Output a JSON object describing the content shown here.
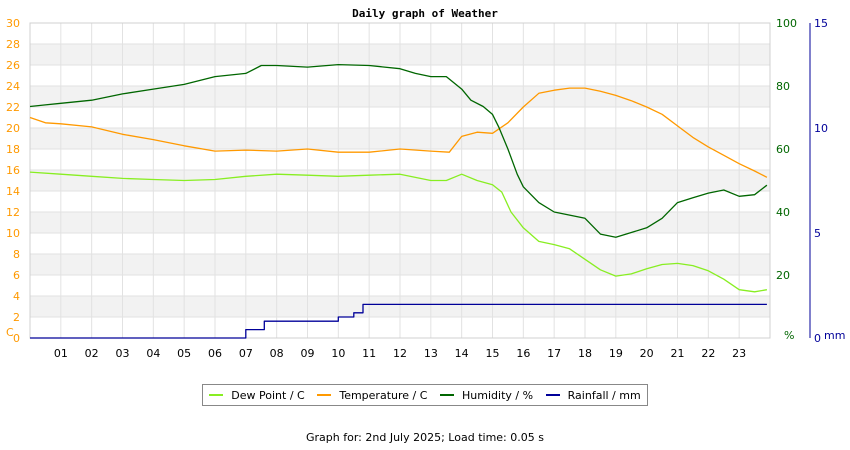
{
  "chart_data": {
    "type": "line",
    "title": "Daily graph of Weather",
    "x_ticks": [
      "01",
      "02",
      "03",
      "04",
      "05",
      "06",
      "07",
      "08",
      "09",
      "10",
      "11",
      "12",
      "13",
      "14",
      "15",
      "16",
      "17",
      "18",
      "19",
      "20",
      "21",
      "22",
      "23"
    ],
    "xlim": [
      0,
      24
    ],
    "axes": {
      "left": {
        "label": "C",
        "lim": [
          0,
          30
        ],
        "ticks": [
          0,
          2,
          4,
          6,
          8,
          10,
          12,
          14,
          16,
          18,
          20,
          22,
          24,
          26,
          28,
          30
        ],
        "color": "#ff9900"
      },
      "right1": {
        "label": "%",
        "lim": [
          0,
          100
        ],
        "ticks": [
          20,
          40,
          60,
          80,
          100
        ],
        "color": "#006600"
      },
      "right2": {
        "label": "mm",
        "lim": [
          0,
          15
        ],
        "ticks": [
          0,
          5,
          10,
          15
        ],
        "color": "#000099"
      }
    },
    "series": [
      {
        "name": "Dew Point / C",
        "axis": "left",
        "color": "#88ee22",
        "x": [
          0,
          1,
          2,
          3,
          4,
          5,
          6,
          7,
          8,
          9,
          10,
          11,
          12,
          13,
          13.5,
          14,
          14.5,
          15,
          15.3,
          15.6,
          16,
          16.5,
          17,
          17.5,
          18,
          18.5,
          19,
          19.5,
          20,
          20.5,
          21,
          21.5,
          22,
          22.5,
          23,
          23.5,
          23.9
        ],
        "values": [
          15.8,
          15.6,
          15.4,
          15.2,
          15.1,
          15.0,
          15.1,
          15.4,
          15.6,
          15.5,
          15.4,
          15.5,
          15.6,
          15.0,
          15.0,
          15.6,
          15.0,
          14.6,
          13.9,
          12.0,
          10.5,
          9.2,
          8.9,
          8.5,
          7.5,
          6.5,
          5.9,
          6.1,
          6.6,
          7.0,
          7.1,
          6.9,
          6.4,
          5.6,
          4.6,
          4.4,
          4.6
        ]
      },
      {
        "name": "Temperature / C",
        "axis": "left",
        "color": "#ff9900",
        "x": [
          0,
          0.5,
          1,
          2,
          3,
          4,
          5,
          6,
          7,
          8,
          9,
          10,
          11,
          12,
          13,
          13.6,
          14,
          14.5,
          15,
          15.5,
          16,
          16.5,
          17,
          17.5,
          18,
          18.5,
          19,
          19.5,
          20,
          20.5,
          21,
          21.5,
          22,
          22.5,
          23,
          23.5,
          23.9
        ],
        "values": [
          21.0,
          20.5,
          20.4,
          20.1,
          19.4,
          18.9,
          18.3,
          17.8,
          17.9,
          17.8,
          18.0,
          17.7,
          17.7,
          18.0,
          17.8,
          17.7,
          19.2,
          19.6,
          19.5,
          20.5,
          22.0,
          23.3,
          23.6,
          23.8,
          23.8,
          23.5,
          23.1,
          22.6,
          22.0,
          21.3,
          20.2,
          19.1,
          18.2,
          17.4,
          16.6,
          15.9,
          15.3
        ]
      },
      {
        "name": "Humidity / %",
        "axis": "right1",
        "color": "#006600",
        "x": [
          0,
          0.5,
          1,
          2,
          3,
          4,
          5,
          6,
          7,
          7.5,
          8,
          9,
          10,
          11,
          12,
          12.5,
          13,
          13.5,
          14,
          14.3,
          14.7,
          15,
          15.2,
          15.5,
          15.8,
          16,
          16.5,
          17,
          17.5,
          18,
          18.5,
          19,
          19.5,
          20,
          20.5,
          21,
          21.5,
          22,
          22.5,
          23,
          23.5,
          23.9
        ],
        "values": [
          73.5,
          74.0,
          74.5,
          75.5,
          77.5,
          79.0,
          80.5,
          83.0,
          84.0,
          86.5,
          86.5,
          86.0,
          86.8,
          86.5,
          85.5,
          84.0,
          83.0,
          83.0,
          79.0,
          75.5,
          73.5,
          71.0,
          67.0,
          60.0,
          52.0,
          48.0,
          43.0,
          40.0,
          39.0,
          38.0,
          33.0,
          32.0,
          33.5,
          35.0,
          38.0,
          43.0,
          44.5,
          46.0,
          47.0,
          45.0,
          45.5,
          48.5
        ]
      },
      {
        "name": "Rainfall / mm",
        "axis": "right2",
        "color": "#000099",
        "step": true,
        "x": [
          0,
          6.8,
          7.0,
          7.3,
          7.6,
          8.0,
          8.5,
          9.0,
          9.5,
          10.0,
          10.3,
          10.5,
          10.8,
          11,
          12,
          13,
          14,
          15,
          16,
          17,
          18,
          19,
          20,
          21,
          22,
          23,
          23.9
        ],
        "values": [
          0,
          0,
          0.4,
          0.4,
          0.8,
          0.8,
          0.8,
          0.8,
          0.8,
          1.0,
          1.0,
          1.2,
          1.6,
          1.6,
          1.6,
          1.6,
          1.6,
          1.6,
          1.6,
          1.6,
          1.6,
          1.6,
          1.6,
          1.6,
          1.6,
          1.6,
          1.6
        ]
      }
    ],
    "legend": {
      "placement": "bottom"
    },
    "grid": true,
    "background_bands": true
  },
  "footer": "Graph for: 2nd July 2025; Load time: 0.05 s"
}
